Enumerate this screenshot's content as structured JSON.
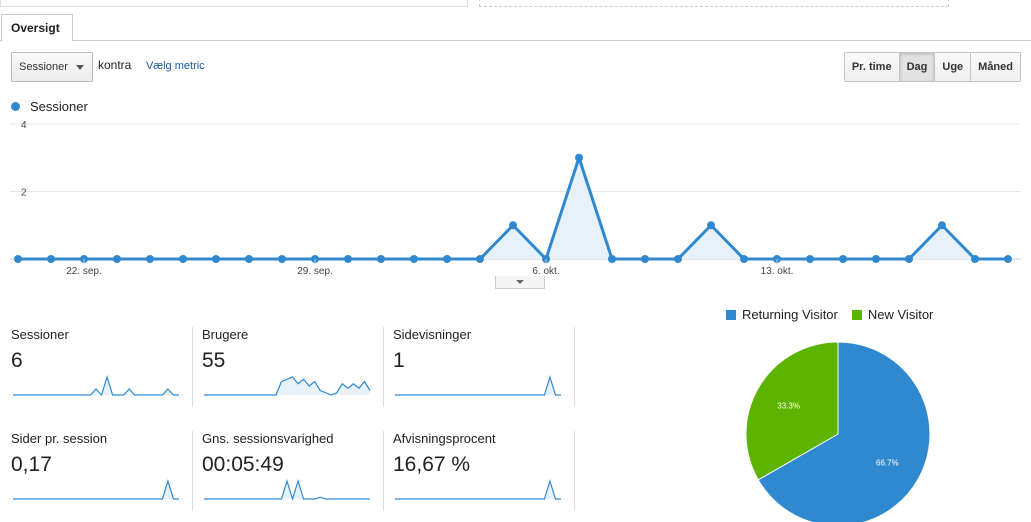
{
  "tabs": {
    "overview_label": "Oversigt"
  },
  "controls": {
    "metric_select": "Sessioner",
    "versus_text": "kontra",
    "choose_metric_link": "Vælg metric",
    "granularity": [
      "Pr. time",
      "Dag",
      "Uge",
      "Måned"
    ],
    "granularity_selected": "Dag"
  },
  "colors": {
    "accent": "#3089cf",
    "returning": "#3089cf",
    "new": "#5cb300"
  },
  "chart_data": [
    {
      "type": "area",
      "series": [
        {
          "name": "Sessioner",
          "values": [
            0,
            0,
            0,
            0,
            0,
            0,
            0,
            0,
            0,
            0,
            0,
            0,
            0,
            0,
            0,
            1,
            0,
            3,
            0,
            0,
            0,
            1,
            0,
            0,
            0,
            0,
            0,
            0,
            1,
            0,
            0
          ]
        }
      ],
      "x_tick_labels": [
        "22. sep.",
        "29. sep.",
        "6. okt.",
        "13. okt."
      ],
      "y_tick_labels": [
        "2",
        "4"
      ],
      "ylim": [
        0,
        4
      ]
    },
    {
      "type": "pie",
      "labels": [
        "Returning Visitor",
        "New Visitor"
      ],
      "values": [
        66.7,
        33.3
      ],
      "value_labels": [
        "66.7%",
        "33.3%"
      ]
    }
  ],
  "metrics": [
    {
      "label": "Sessioner",
      "value": "6",
      "spark": [
        0,
        0,
        0,
        0,
        0,
        0,
        0,
        0,
        0,
        0,
        0,
        0,
        0,
        0,
        0,
        1,
        0,
        3,
        0,
        0,
        0,
        1,
        0,
        0,
        0,
        0,
        0,
        0,
        1,
        0,
        0
      ],
      "spark_max": 3
    },
    {
      "label": "Brugere",
      "value": "55",
      "spark": [
        0,
        0,
        0,
        0,
        0,
        0,
        0,
        0,
        0,
        0,
        0,
        0,
        0,
        0,
        6,
        7,
        8,
        5,
        7,
        4,
        6,
        2,
        1,
        0,
        1,
        5,
        3,
        5,
        3,
        6,
        2
      ],
      "spark_max": 8
    },
    {
      "label": "Sidevisninger",
      "value": "1",
      "spark": [
        0,
        0,
        0,
        0,
        0,
        0,
        0,
        0,
        0,
        0,
        0,
        0,
        0,
        0,
        0,
        0,
        0,
        0,
        0,
        0,
        0,
        0,
        0,
        0,
        0,
        0,
        0,
        0,
        1,
        0,
        0
      ],
      "spark_max": 1
    },
    {
      "label": "Sider pr. session",
      "value": "0,17",
      "spark": [
        0,
        0,
        0,
        0,
        0,
        0,
        0,
        0,
        0,
        0,
        0,
        0,
        0,
        0,
        0,
        0,
        0,
        0,
        0,
        0,
        0,
        0,
        0,
        0,
        0,
        0,
        0,
        0,
        1,
        0,
        0
      ],
      "spark_max": 1
    },
    {
      "label": "Gns. sessionsvarighed",
      "value": "00:05:49",
      "spark": [
        0,
        0,
        0,
        0,
        0,
        0,
        0,
        0,
        0,
        0,
        0,
        0,
        0,
        0,
        0,
        1,
        0,
        1,
        0,
        0,
        0,
        0.1,
        0,
        0,
        0,
        0,
        0,
        0,
        0,
        0,
        0
      ],
      "spark_max": 1
    },
    {
      "label": "Afvisningsprocent",
      "value": "16,67 %",
      "spark": [
        0,
        0,
        0,
        0,
        0,
        0,
        0,
        0,
        0,
        0,
        0,
        0,
        0,
        0,
        0,
        0,
        0,
        0,
        0,
        0,
        0,
        0,
        0,
        0,
        0,
        0,
        0,
        0,
        1,
        0,
        0
      ],
      "spark_max": 1
    }
  ],
  "pie_legend": {
    "returning_label": "Returning Visitor",
    "new_label": "New Visitor"
  }
}
